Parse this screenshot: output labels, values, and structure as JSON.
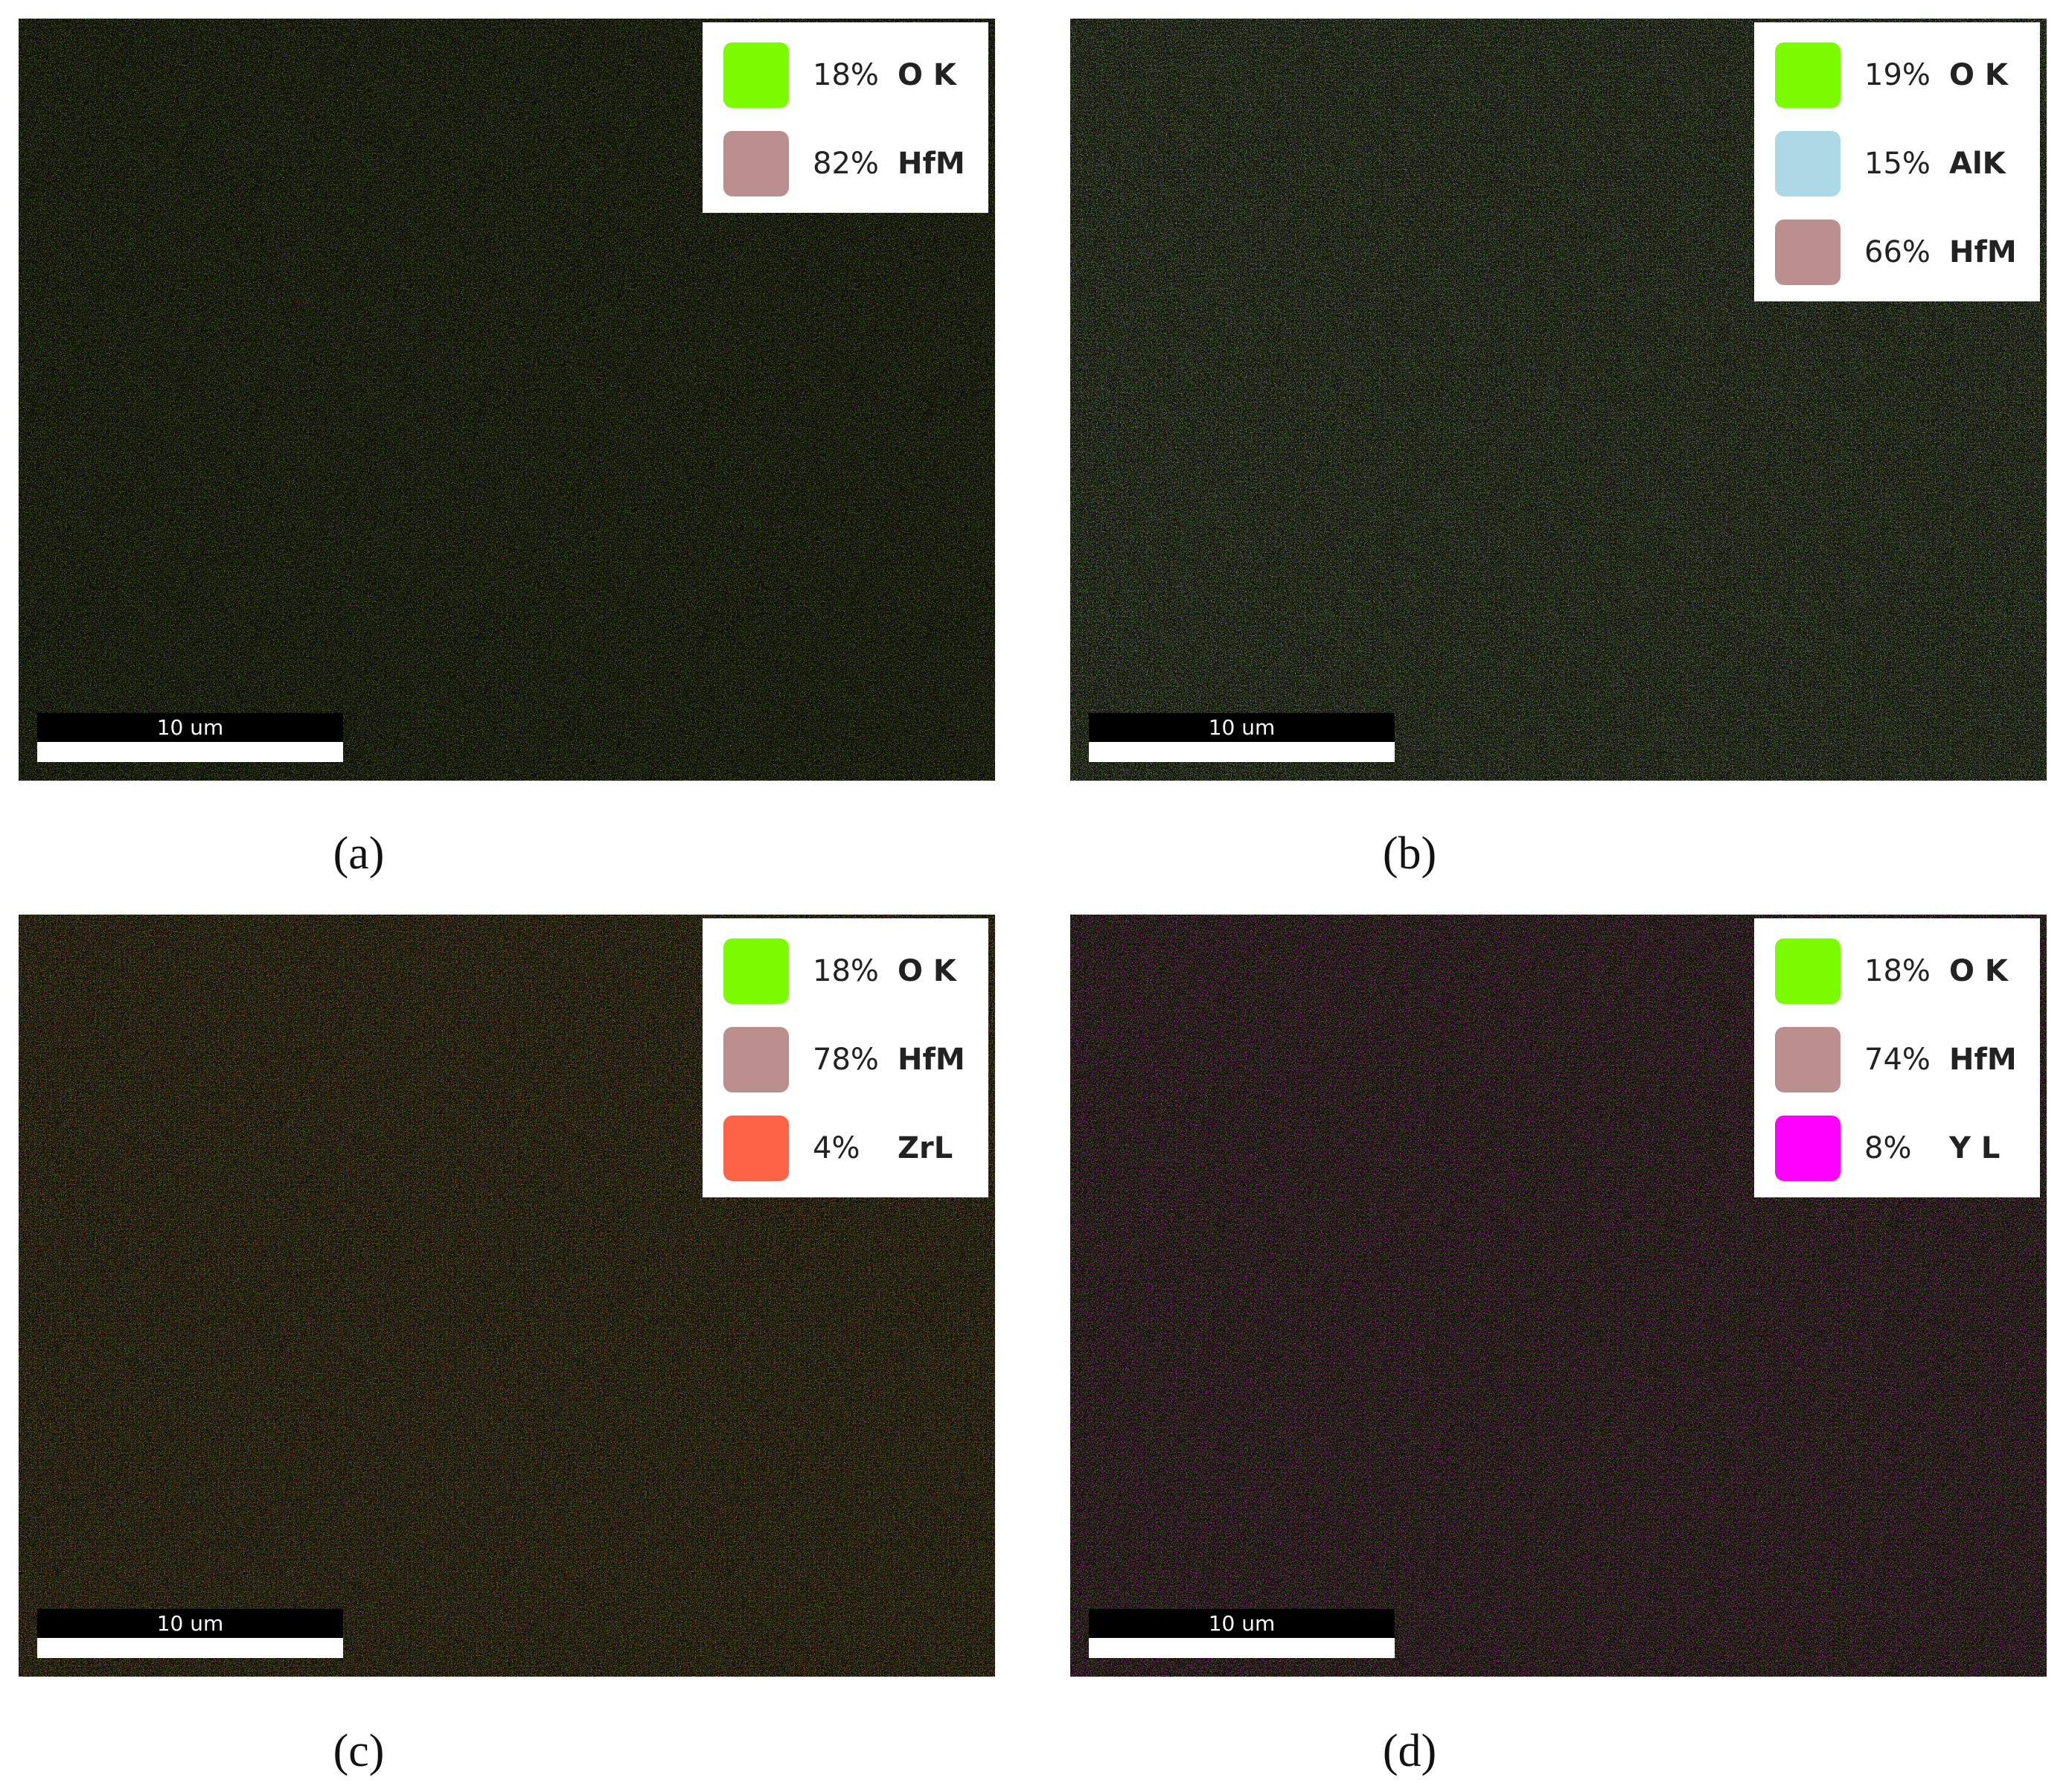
{
  "panels": [
    {
      "caption": "(a)",
      "scale_bar": "10 um",
      "legend": [
        {
          "percent": "18%",
          "element": "O K",
          "color": "#7cfc00"
        },
        {
          "percent": "82%",
          "element": "HfM",
          "color": "#bc8f8f"
        }
      ]
    },
    {
      "caption": "(b)",
      "scale_bar": "10 um",
      "legend": [
        {
          "percent": "19%",
          "element": "O K",
          "color": "#7cfc00"
        },
        {
          "percent": "15%",
          "element": "AlK",
          "color": "#add8e6"
        },
        {
          "percent": "66%",
          "element": "HfM",
          "color": "#bc8f8f"
        }
      ]
    },
    {
      "caption": "(c)",
      "scale_bar": "10 um",
      "legend": [
        {
          "percent": "18%",
          "element": "O K",
          "color": "#7cfc00"
        },
        {
          "percent": "78%",
          "element": "HfM",
          "color": "#bc8f8f"
        },
        {
          "percent": "4%",
          "element": "ZrL",
          "color": "#ff6347"
        }
      ]
    },
    {
      "caption": "(d)",
      "scale_bar": "10 um",
      "legend": [
        {
          "percent": "18%",
          "element": "O K",
          "color": "#7cfc00"
        },
        {
          "percent": "74%",
          "element": "HfM",
          "color": "#bc8f8f"
        },
        {
          "percent": "8%",
          "element": "Y L",
          "color": "#ff00ff"
        }
      ]
    }
  ]
}
